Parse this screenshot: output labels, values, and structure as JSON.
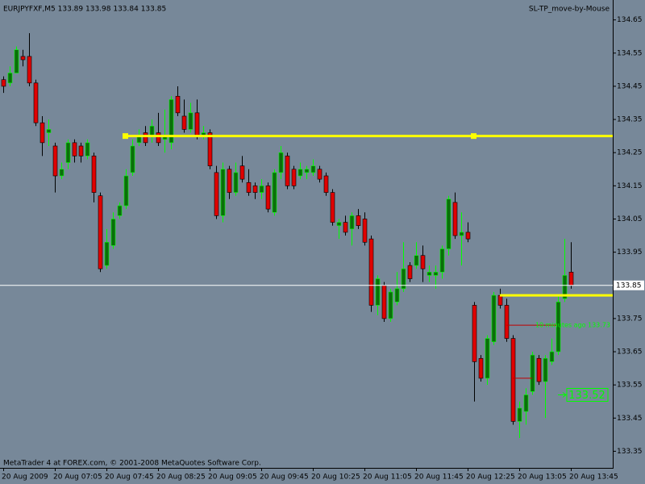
{
  "chart_data": {
    "type": "candlestick",
    "title": "EURJPYFXF,M5  133.89 133.98 133.84 133.85",
    "indicator": "SL-TP_move-by-Mouse",
    "footer": "MetaTrader 4 at FOREX.com, © 2001-2008 MetaQuotes Software Corp.",
    "background": "#778899",
    "up_color": "#0b6e0b",
    "up_wick_color": "#00ff00",
    "down_color": "#e00000",
    "down_wick_color": "#000000",
    "ylim": [
      133.3,
      134.71
    ],
    "yticks": [
      134.65,
      134.55,
      134.45,
      134.35,
      134.25,
      134.15,
      134.05,
      133.95,
      133.75,
      133.65,
      133.55,
      133.45,
      133.35
    ],
    "categories": [
      "20 Aug 2009",
      null,
      null,
      null,
      null,
      null,
      null,
      null,
      "20 Aug 07:05",
      null,
      null,
      null,
      null,
      null,
      null,
      null,
      "20 Aug 07:45",
      null,
      null,
      null,
      null,
      null,
      null,
      null,
      "20 Aug 08:25",
      null,
      null,
      null,
      null,
      null,
      null,
      null,
      "20 Aug 09:05",
      null,
      null,
      null,
      null,
      null,
      null,
      null,
      "20 Aug 09:45",
      null,
      null,
      null,
      null,
      null,
      null,
      null,
      "20 Aug 10:25",
      null,
      null,
      null,
      null,
      null,
      null,
      null,
      "20 Aug 11:05",
      null,
      null,
      null,
      null,
      null,
      null,
      null,
      "20 Aug 11:45",
      null,
      null,
      null,
      null,
      null,
      null,
      null,
      "20 Aug 12:25",
      null,
      null,
      null,
      null,
      null,
      null,
      null,
      "20 Aug 13:05",
      null,
      null,
      null,
      null,
      null,
      null,
      null,
      "20 Aug 13:45"
    ],
    "open": [
      134.47,
      134.46,
      134.49,
      134.54,
      134.54,
      134.46,
      134.34,
      134.31,
      134.27,
      134.18,
      134.22,
      134.28,
      134.27,
      134.24,
      134.24,
      134.12,
      133.91,
      133.97,
      134.06,
      134.09,
      134.19,
      134.28,
      134.31,
      134.3,
      134.31,
      134.29,
      134.28,
      134.42,
      134.36,
      134.32,
      134.37,
      134.3,
      134.31,
      134.19,
      134.06,
      134.2,
      134.13,
      134.21,
      134.16,
      134.15,
      134.13,
      134.15,
      134.07,
      134.19,
      134.24,
      134.2,
      134.18,
      134.19,
      134.19,
      134.2,
      134.18,
      134.13,
      134.03,
      134.04,
      134.02,
      134.06,
      134.05,
      133.99,
      133.79,
      133.85,
      133.75,
      133.8,
      133.84,
      133.91,
      133.91,
      133.94,
      133.88,
      133.88,
      133.89,
      133.96,
      134.1,
      134.0,
      134.01,
      133.79,
      133.63,
      133.57,
      133.68,
      133.82,
      133.79,
      133.69,
      133.44,
      133.47,
      133.53,
      133.63,
      133.56,
      133.62,
      133.65,
      133.81,
      133.89
    ],
    "high": [
      134.48,
      134.51,
      134.57,
      134.56,
      134.61,
      134.47,
      134.36,
      134.35,
      134.28,
      134.22,
      134.29,
      134.29,
      134.28,
      134.29,
      134.25,
      134.13,
      134.02,
      134.07,
      134.1,
      134.2,
      134.29,
      134.32,
      134.33,
      134.35,
      134.37,
      134.38,
      134.42,
      134.45,
      134.41,
      134.4,
      134.41,
      134.33,
      134.32,
      134.21,
      134.22,
      134.21,
      134.22,
      134.24,
      134.2,
      134.16,
      134.17,
      134.16,
      134.2,
      134.27,
      134.25,
      134.21,
      134.22,
      134.21,
      134.23,
      134.21,
      134.19,
      134.14,
      134.05,
      134.06,
      134.07,
      134.08,
      134.07,
      134.0,
      133.88,
      133.86,
      133.84,
      133.89,
      133.98,
      133.92,
      133.98,
      133.97,
      133.91,
      133.91,
      133.97,
      134.12,
      134.13,
      134.07,
      134.04,
      133.8,
      133.64,
      133.7,
      133.83,
      133.84,
      133.81,
      133.7,
      133.5,
      133.54,
      133.65,
      133.64,
      133.64,
      133.69,
      133.82,
      133.99,
      133.98
    ],
    "low": [
      134.43,
      134.45,
      134.49,
      134.51,
      134.45,
      134.33,
      134.24,
      134.27,
      134.13,
      134.17,
      134.2,
      134.22,
      134.22,
      134.23,
      134.1,
      133.89,
      133.9,
      133.96,
      134.05,
      134.08,
      134.18,
      134.27,
      134.27,
      134.28,
      134.27,
      134.25,
      134.26,
      134.36,
      134.31,
      134.31,
      134.29,
      134.29,
      134.2,
      134.05,
      134.04,
      134.11,
      134.12,
      134.16,
      134.12,
      134.11,
      134.11,
      134.07,
      134.06,
      134.17,
      134.14,
      134.14,
      134.17,
      134.17,
      134.18,
      134.16,
      134.12,
      134.03,
      133.99,
      134.0,
      133.97,
      134.02,
      133.97,
      133.77,
      133.76,
      133.74,
      133.74,
      133.79,
      133.83,
      133.86,
      133.9,
      133.86,
      133.86,
      133.84,
      133.87,
      133.94,
      133.99,
      133.91,
      133.98,
      133.5,
      133.56,
      133.55,
      133.67,
      133.78,
      133.68,
      133.43,
      133.39,
      133.43,
      133.52,
      133.55,
      133.45,
      133.61,
      133.64,
      133.8,
      133.84
    ],
    "close": [
      134.45,
      134.49,
      134.56,
      134.53,
      134.46,
      134.34,
      134.28,
      134.32,
      134.18,
      134.2,
      134.28,
      134.24,
      134.24,
      134.28,
      134.13,
      133.9,
      133.98,
      134.05,
      134.09,
      134.18,
      134.27,
      134.3,
      134.28,
      134.33,
      134.28,
      134.3,
      134.41,
      134.37,
      134.32,
      134.37,
      134.3,
      134.31,
      134.21,
      134.06,
      134.2,
      134.13,
      134.19,
      134.17,
      134.13,
      134.13,
      134.15,
      134.08,
      134.19,
      134.25,
      134.15,
      134.15,
      134.2,
      134.2,
      134.21,
      134.17,
      134.13,
      134.04,
      134.04,
      134.01,
      134.06,
      134.03,
      133.98,
      133.79,
      133.87,
      133.75,
      133.83,
      133.84,
      133.9,
      133.87,
      133.94,
      133.9,
      133.89,
      133.89,
      133.96,
      134.11,
      134.0,
      134.01,
      133.99,
      133.62,
      133.57,
      133.69,
      133.82,
      133.79,
      133.69,
      133.44,
      133.48,
      133.52,
      133.64,
      133.56,
      133.63,
      133.65,
      133.8,
      133.88,
      133.85
    ],
    "current_price": 133.85,
    "levels": [
      {
        "value": 134.3,
        "color": "#ffff00"
      },
      {
        "value": 133.82,
        "color": "#ffff00"
      },
      {
        "value": 133.73,
        "color": "#c00000",
        "label": "10 minutes ago 133.73"
      },
      {
        "value": 133.57,
        "color": "#c00000"
      }
    ],
    "price_box": 133.52
  }
}
